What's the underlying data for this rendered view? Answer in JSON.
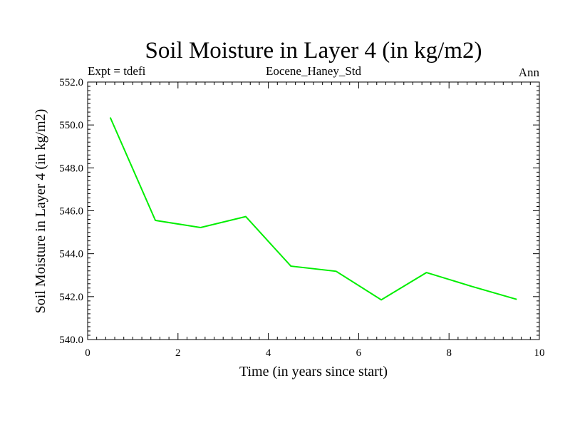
{
  "chart_data": {
    "type": "line",
    "title": "Soil Moisture in Layer 4 (in kg/m2)",
    "subtitle_left": "Expt = tdefi",
    "subtitle_center": "Eocene_Haney_Std",
    "subtitle_right": "Ann",
    "xlabel": "Time (in years since start)",
    "ylabel": "Soil Moisture in Layer 4 (in kg/m2)",
    "xlim": [
      0,
      10
    ],
    "ylim": [
      540,
      552
    ],
    "x_ticks": [
      0,
      2,
      4,
      6,
      8,
      10
    ],
    "x_tick_labels": [
      "0",
      "2",
      "4",
      "6",
      "8",
      "10"
    ],
    "y_ticks": [
      540,
      542,
      544,
      546,
      548,
      550,
      552
    ],
    "y_tick_labels": [
      "540.0",
      "542.0",
      "544.0",
      "546.0",
      "548.0",
      "550.0",
      "552.0"
    ],
    "grid": false,
    "series": [
      {
        "color": "#00ee00",
        "x": [
          0.5,
          1.5,
          2.5,
          3.5,
          4.5,
          5.5,
          6.5,
          7.5,
          8.5,
          9.5
        ],
        "y": [
          550.35,
          545.55,
          545.22,
          545.73,
          543.42,
          543.18,
          541.85,
          543.12,
          542.48,
          541.87
        ]
      }
    ]
  }
}
